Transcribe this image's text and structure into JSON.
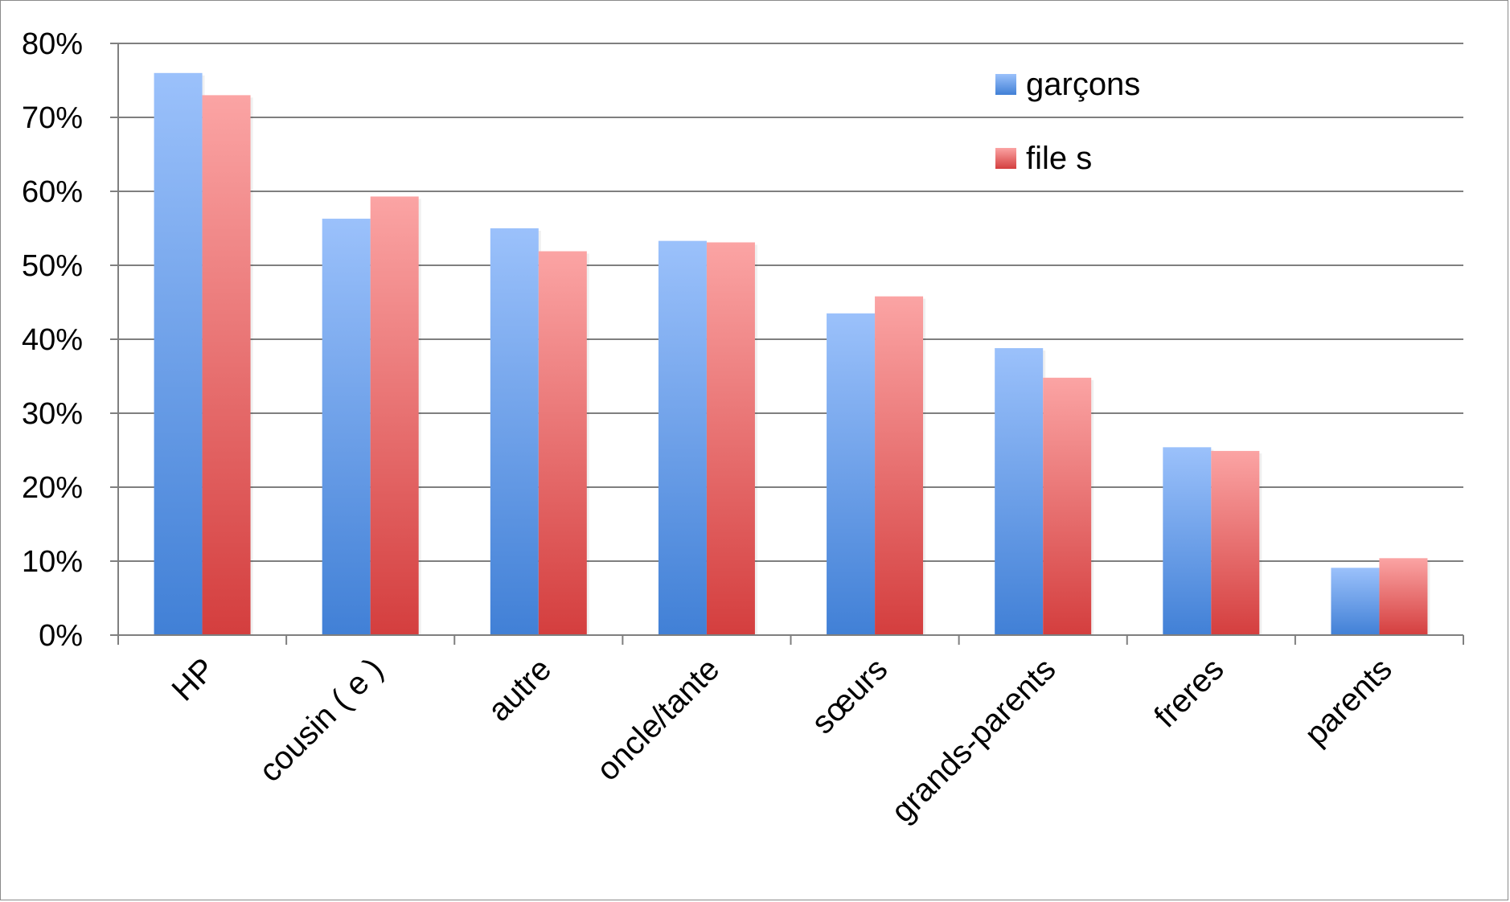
{
  "chart_data": {
    "type": "bar",
    "categories": [
      "HP",
      "cousin ( e )",
      "autre",
      "oncle/tante",
      "sœurs",
      "grands-parents",
      "freres",
      "parents"
    ],
    "series": [
      {
        "name": "garçons",
        "values": [
          76,
          56.3,
          55,
          53.3,
          43.5,
          38.8,
          25.4,
          9.1
        ]
      },
      {
        "name": "file s",
        "values": [
          73,
          59.3,
          51.9,
          53.1,
          45.8,
          34.8,
          24.9,
          10.4
        ]
      }
    ],
    "ylim": [
      0,
      80
    ],
    "yticks": [
      "0%",
      "10%",
      "20%",
      "30%",
      "40%",
      "50%",
      "60%",
      "70%",
      "80%"
    ],
    "grid": true,
    "legend_position": "top-right",
    "colors": {
      "garçons_top": "#9bc1fb",
      "garçons_bottom": "#4180d6",
      "file s_top": "#fba4a4",
      "file s_bottom": "#d43e3e",
      "grid": "#7f7f7f",
      "axis": "#7f7f7f"
    }
  }
}
